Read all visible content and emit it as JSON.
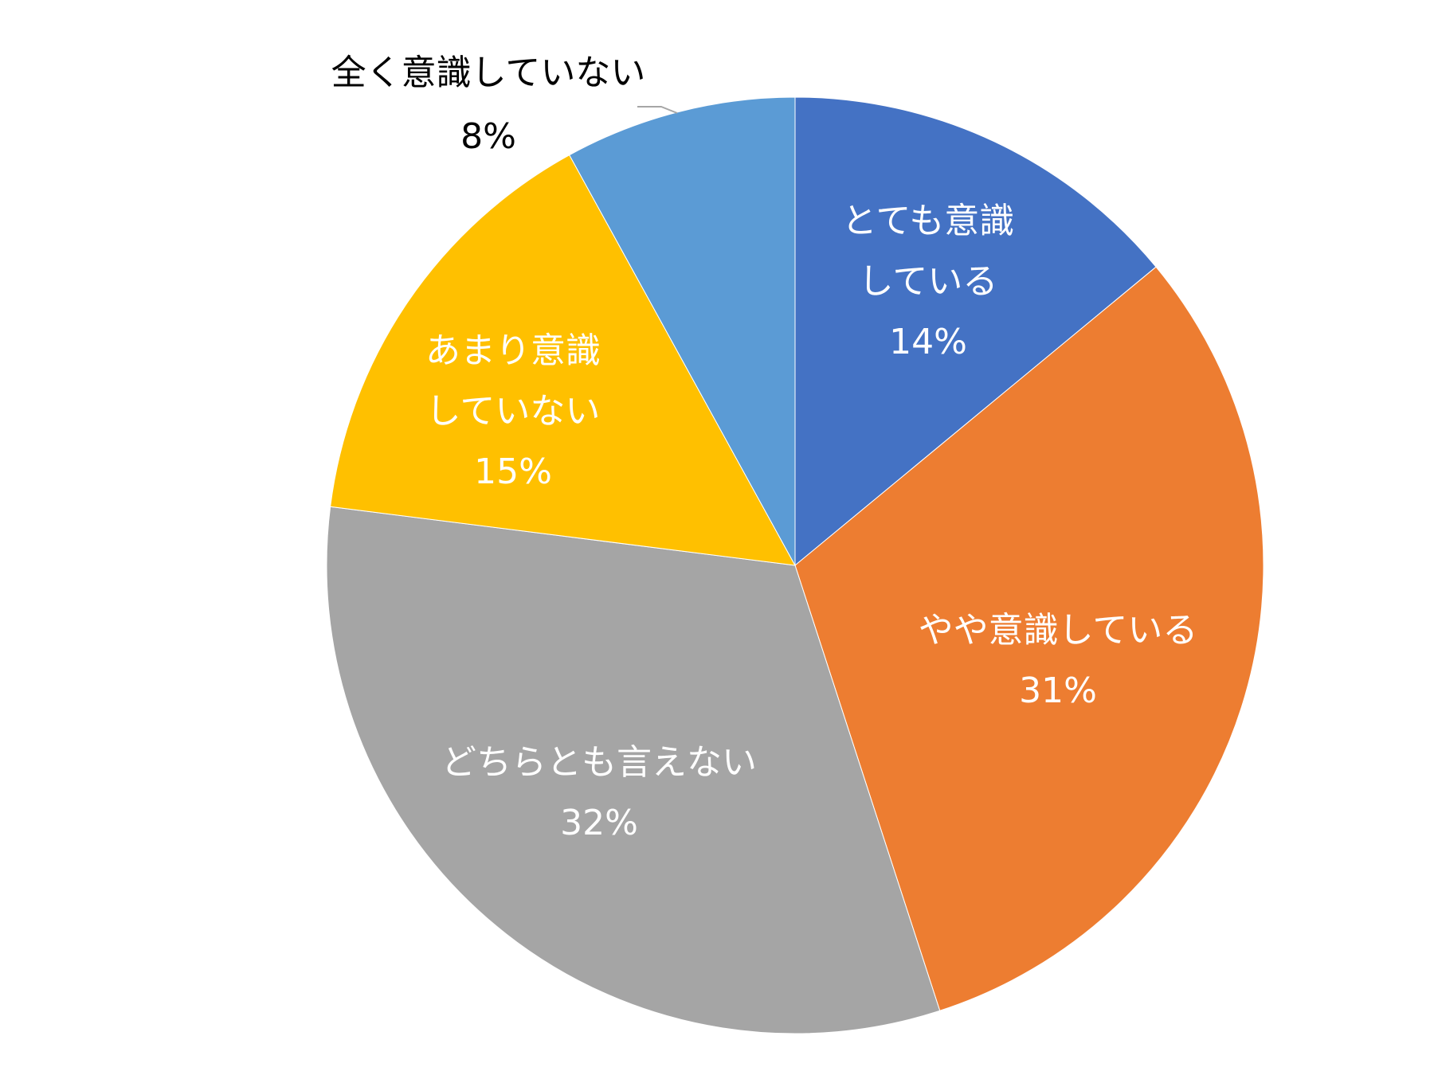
{
  "chart_data": {
    "type": "pie",
    "title": "",
    "slices": [
      {
        "label": "とても意識している",
        "value": 14,
        "pct_label": "14%",
        "color": "#4472C4"
      },
      {
        "label": "やや意識している",
        "value": 31,
        "pct_label": "31%",
        "color": "#ED7D31"
      },
      {
        "label": "どちらとも言えない",
        "value": 32,
        "pct_label": "32%",
        "color": "#A5A5A5"
      },
      {
        "label": "あまり意識していない",
        "value": 15,
        "pct_label": "15%",
        "color": "#FFC000"
      },
      {
        "label": "全く意識していない",
        "value": 8,
        "pct_label": "8%",
        "color": "#5B9BD5"
      }
    ],
    "legend": "none",
    "data_labels": "category-and-percent"
  }
}
